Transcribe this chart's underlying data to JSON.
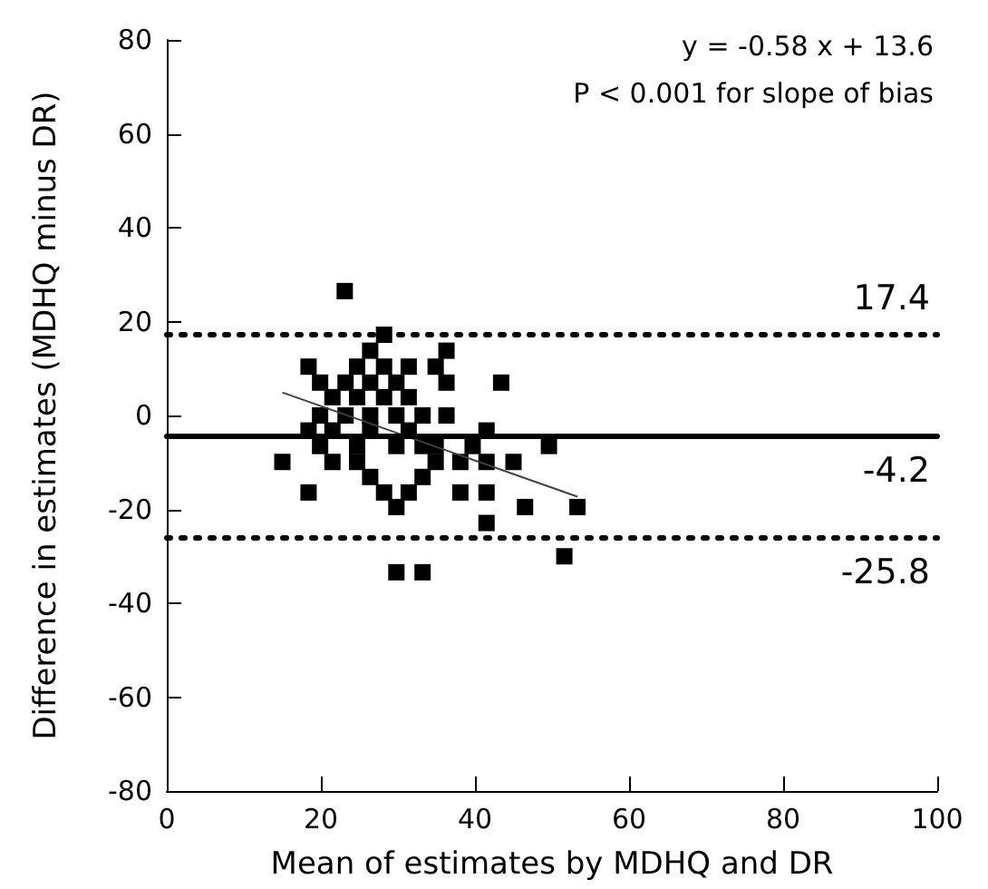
{
  "chart_data": {
    "type": "scatter",
    "xlabel": "Mean of estimates by MDHQ and DR",
    "ylabel": "Difference in estimates (MDHQ minus DR)",
    "annotations": [
      "y = -0.58 x + 13.6",
      "P < 0.001 for slope of bias"
    ],
    "xlim": [
      0,
      100
    ],
    "xticks": [
      0,
      20,
      40,
      60,
      80,
      100
    ],
    "ylim": [
      -80,
      80
    ],
    "yticks": [
      -80,
      -60,
      -40,
      -20,
      0,
      20,
      40,
      60,
      80
    ],
    "grid": false,
    "series": [
      {
        "color": "#000000",
        "marker": "square",
        "x": [
          23.1,
          28.2,
          26.4,
          36.3,
          18.4,
          24.7,
          28.2,
          31.4,
          34.9,
          19.9,
          23.2,
          26.4,
          29.8,
          36.3,
          43.4,
          21.5,
          24.7,
          28.2,
          31.4,
          19.9,
          23.2,
          26.4,
          29.8,
          33.2,
          36.3,
          18.4,
          21.5,
          26.4,
          31.4,
          41.5,
          19.9,
          24.7,
          29.8,
          33.2,
          34.9,
          39.7,
          49.6,
          15.0,
          21.5,
          24.7,
          34.9,
          38.1,
          41.5,
          45.0,
          26.4,
          33.2,
          18.4,
          28.2,
          31.4,
          38.1,
          41.5,
          29.8,
          46.5,
          53.3,
          41.5,
          51.6,
          29.8,
          33.2
        ],
        "values": [
          26.5,
          17.2,
          13.8,
          13.8,
          10.4,
          10.4,
          10.4,
          10.4,
          10.4,
          7.0,
          7.0,
          7.0,
          7.0,
          7.0,
          7.0,
          3.9,
          3.9,
          3.9,
          3.9,
          0,
          0,
          0,
          0,
          0,
          0,
          -3.2,
          -3.2,
          -3.2,
          -3.2,
          -3.2,
          -6.5,
          -6.5,
          -6.5,
          -6.5,
          -6.5,
          -6.5,
          -6.5,
          -9.9,
          -9.9,
          -9.9,
          -9.9,
          -9.9,
          -9.9,
          -9.9,
          -13.1,
          -13.1,
          -16.4,
          -16.4,
          -16.4,
          -16.4,
          -16.4,
          -19.5,
          -19.5,
          -19.5,
          -22.9,
          -30.0,
          -33.4,
          -33.4
        ]
      },
      {
        "type": "line",
        "color": "#404040",
        "line_style": "solid",
        "marker": "none",
        "x": [
          15,
          53.3
        ],
        "values": [
          4.9,
          -17.3
        ]
      }
    ],
    "ref_lines": [
      {
        "axis": "y",
        "value": 17.4,
        "label": "17.4",
        "color": "#000000",
        "line_style": "dotted"
      },
      {
        "axis": "y",
        "value": -4.2,
        "label": "-4.2",
        "color": "#000000",
        "line_style": "solid"
      },
      {
        "axis": "y",
        "value": -25.8,
        "label": "-25.8",
        "color": "#000000",
        "line_style": "dotted"
      }
    ]
  }
}
